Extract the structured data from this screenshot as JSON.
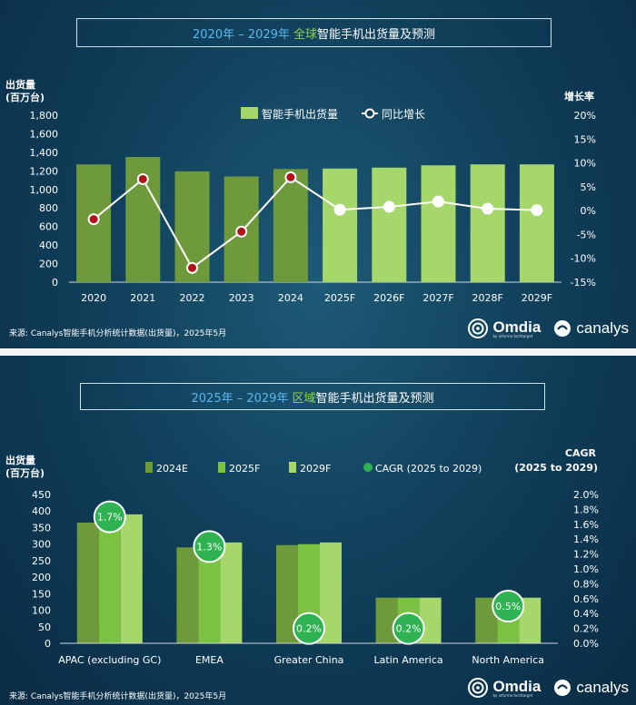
{
  "chart1": {
    "title": {
      "years": "2020年 – 2029年",
      "region": "全球",
      "rest": "智能手机出货量及预测"
    },
    "y_left_label": [
      "出货量",
      "(百万台)"
    ],
    "y_right_label": "增长率",
    "left_ticks": [
      "0",
      "200",
      "400",
      "600",
      "800",
      "1,000",
      "1,200",
      "1,400",
      "1,600",
      "1,800"
    ],
    "right_ticks": [
      "-15%",
      "-10%",
      "-5%",
      "0%",
      "5%",
      "10%",
      "15%",
      "20%"
    ],
    "legend": {
      "bar": "智能手机出货量",
      "line": "同比增长"
    },
    "footer": "来源: Canalys智能手机分析统计数据(出货量)，2025年5月"
  },
  "chart2": {
    "title": {
      "years": "2025年 – 2029年",
      "region": "区域",
      "rest": "智能手机出货量及预测"
    },
    "y_left_label": [
      "出货量",
      "(百万台)"
    ],
    "y_right_label": [
      "CAGR",
      "(2025 to 2029)"
    ],
    "left_ticks": [
      "0",
      "50",
      "100",
      "150",
      "200",
      "250",
      "300",
      "350",
      "400",
      "450"
    ],
    "right_ticks": [
      "0.0%",
      "0.2%",
      "0.4%",
      "0.6%",
      "0.8%",
      "1.0%",
      "1.2%",
      "1.4%",
      "1.6%",
      "1.8%",
      "2.0%"
    ],
    "legend": [
      "2024E",
      "2025F",
      "2029F",
      "CAGR (2025 to 2029)"
    ],
    "footer": "来源: Canalys智能手机分析统计数据(出货量)，2025年5月"
  },
  "logos": {
    "omdia": "Omdia",
    "omdia_sub": "by informa techtarget",
    "canalys": "canalys"
  },
  "colors": {
    "bar_actual": "#6f9a3b",
    "bar_forecast": "#a6d76a",
    "bar_2024": "#6f9a3b",
    "bar_2025": "#7cc242",
    "bar_2029": "#a6d76a",
    "cagr_marker": "#2fb352",
    "growth_marker_actual": "#b0151c",
    "growth_marker_forecast": "#ffffff",
    "title_years": "#59b8f0",
    "title_region": "#8fd14f"
  },
  "chart_data": [
    {
      "type": "bar",
      "categories": [
        "2020",
        "2021",
        "2022",
        "2023",
        "2024",
        "2025F",
        "2026F",
        "2027F",
        "2028F",
        "2029F"
      ],
      "series": [
        {
          "name": "智能手机出货量",
          "values": [
            1270,
            1350,
            1195,
            1140,
            1220,
            1225,
            1235,
            1260,
            1270,
            1270
          ]
        },
        {
          "name": "同比增长",
          "values": [
            -1.8,
            6.6,
            -12.0,
            -4.4,
            7.0,
            0.2,
            0.8,
            1.9,
            0.4,
            0.1
          ]
        }
      ],
      "ylim": [
        0,
        1800
      ],
      "y2lim": [
        -15,
        20
      ]
    },
    {
      "type": "bar",
      "categories": [
        "APAC (excluding GC)",
        "EMEA",
        "Greater China",
        "Latin America",
        "North America"
      ],
      "series": [
        {
          "name": "2024E",
          "values": [
            365,
            290,
            297,
            138,
            138
          ]
        },
        {
          "name": "2025F",
          "values": [
            372,
            293,
            300,
            138,
            135
          ]
        },
        {
          "name": "2029F",
          "values": [
            390,
            305,
            305,
            138,
            138
          ]
        },
        {
          "name": "CAGR (2025 to 2029)",
          "values": [
            1.7,
            1.3,
            0.2,
            0.2,
            0.5
          ]
        }
      ],
      "cagr_labels": [
        "1.7%",
        "1.3%",
        "0.2%",
        "0.2%",
        "0.5%"
      ],
      "ylim": [
        0,
        450
      ],
      "y2lim": [
        0,
        2.0
      ]
    }
  ]
}
